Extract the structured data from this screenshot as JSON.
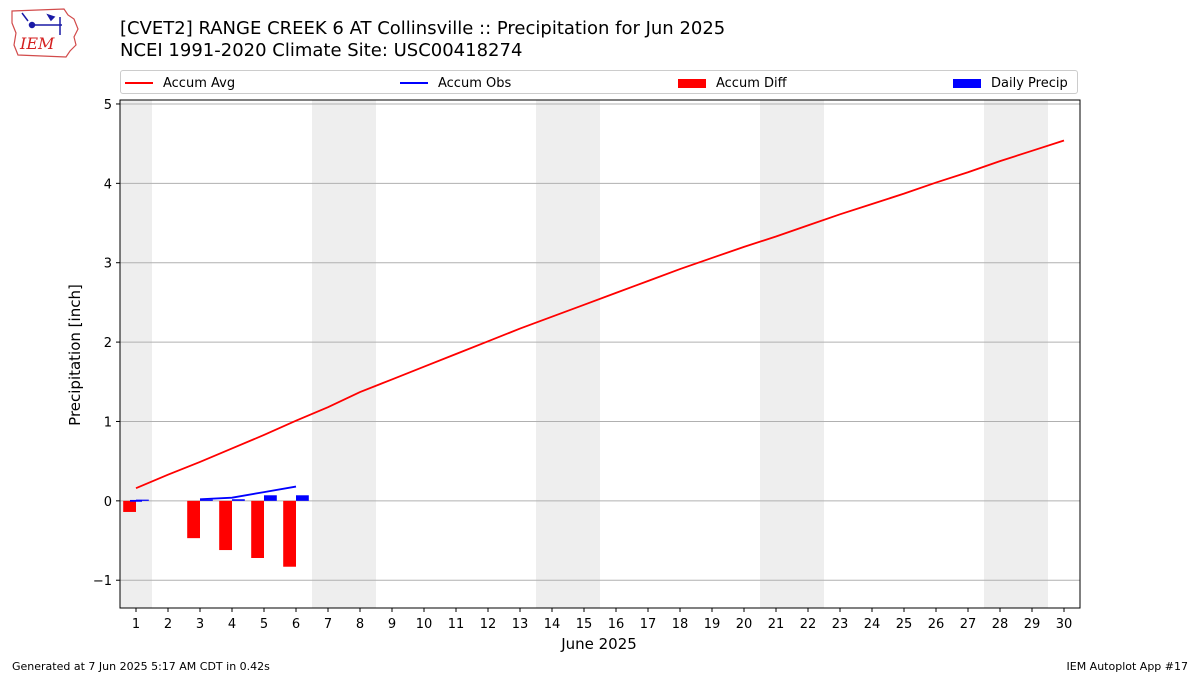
{
  "header": {
    "logo_text": "IEM",
    "title_line1": "[CVET2] RANGE CREEK 6 AT Collinsville :: Precipitation for Jun 2025",
    "title_line2": "NCEI 1991-2020 Climate Site: USC00418274"
  },
  "legend": {
    "items": [
      {
        "label": "Accum Avg",
        "kind": "line",
        "color": "#ff0000"
      },
      {
        "label": "Accum Obs",
        "kind": "line",
        "color": "#0000ff"
      },
      {
        "label": "Accum Diff",
        "kind": "bar",
        "color": "#ff0000"
      },
      {
        "label": "Daily Precip",
        "kind": "bar",
        "color": "#0000ff"
      }
    ]
  },
  "footer": {
    "left": "Generated at 7 Jun 2025 5:17 AM CDT in 0.42s",
    "right": "IEM Autoplot App #17"
  },
  "chart_data": {
    "type": "line",
    "xlabel": "June 2025",
    "ylabel": "Precipitation [inch]",
    "xlim": [
      0.5,
      30.5
    ],
    "ylim": [
      -1.35,
      5.05
    ],
    "x_ticks": [
      1,
      2,
      3,
      4,
      5,
      6,
      7,
      8,
      9,
      10,
      11,
      12,
      13,
      14,
      15,
      16,
      17,
      18,
      19,
      20,
      21,
      22,
      23,
      24,
      25,
      26,
      27,
      28,
      29,
      30
    ],
    "y_ticks": [
      -1,
      0,
      1,
      2,
      3,
      4,
      5
    ],
    "y_tick_labels": [
      "−1",
      "0",
      "1",
      "2",
      "3",
      "4",
      "5"
    ],
    "grid": "y",
    "weekend_shading": [
      [
        0.5,
        1.5
      ],
      [
        6.5,
        8.5
      ],
      [
        13.5,
        15.5
      ],
      [
        20.5,
        22.5
      ],
      [
        27.5,
        29.5
      ]
    ],
    "shade_color": "#eeeeee",
    "series": [
      {
        "name": "Accum Avg",
        "type": "line",
        "color": "#ff0000",
        "x": [
          1,
          2,
          3,
          4,
          5,
          6,
          7,
          8,
          9,
          10,
          11,
          12,
          13,
          14,
          15,
          16,
          17,
          18,
          19,
          20,
          21,
          22,
          23,
          24,
          25,
          26,
          27,
          28,
          29,
          30
        ],
        "values": [
          0.16,
          0.33,
          0.49,
          0.66,
          0.83,
          1.01,
          1.18,
          1.37,
          1.53,
          1.69,
          1.85,
          2.01,
          2.17,
          2.32,
          2.47,
          2.62,
          2.77,
          2.92,
          3.06,
          3.2,
          3.33,
          3.47,
          3.61,
          3.74,
          3.87,
          4.01,
          4.14,
          4.28,
          4.41,
          4.54
        ]
      },
      {
        "name": "Accum Obs",
        "type": "line",
        "color": "#0000ff",
        "segments": [
          {
            "x": [
              1
            ],
            "values": [
              0.0
            ]
          },
          {
            "x": [
              3,
              4,
              5,
              6
            ],
            "values": [
              0.02,
              0.04,
              0.11,
              0.18
            ]
          }
        ]
      },
      {
        "name": "Accum Diff",
        "type": "bar",
        "color": "#ff0000",
        "offset": -0.2,
        "x": [
          1,
          3,
          4,
          5,
          6
        ],
        "values": [
          -0.14,
          -0.47,
          -0.62,
          -0.72,
          -0.83
        ]
      },
      {
        "name": "Daily Precip",
        "type": "bar",
        "color": "#0000ff",
        "offset": 0.2,
        "x": [
          1,
          3,
          4,
          5,
          6
        ],
        "values": [
          0.0,
          0.01,
          0.02,
          0.07,
          0.07
        ]
      }
    ]
  }
}
